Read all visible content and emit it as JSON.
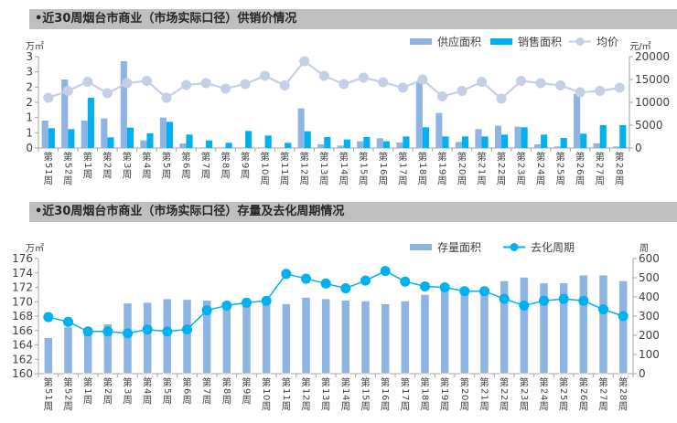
{
  "headers": {
    "chart1_title": "•近30周烟台市商业（市场实际口径）供销价情况",
    "chart2_title": "•近30周烟台市商业（市场实际口径）存量及去化周期情况"
  },
  "colors": {
    "supply": "#8eb4e3",
    "sales": "#00b0f0",
    "price": "#c5cfe6",
    "stock": "#8eb4e3",
    "cycle": "#00b0f0",
    "header_bg": "#bfbfbf"
  },
  "chart_data": [
    {
      "type": "bar",
      "title": "•近30周烟台市商业（市场实际口径）供销价情况",
      "ylabel": "万㎡",
      "y2label": "元/㎡",
      "ylim": [
        0,
        3
      ],
      "y2lim": [
        0,
        20000
      ],
      "yticks": [
        "0",
        "1",
        "1",
        "2",
        "2",
        "3",
        "3"
      ],
      "y2ticks": [
        "0",
        "5000",
        "10000",
        "15000",
        "20000"
      ],
      "legend_position": "top-right",
      "categories": [
        "第51周",
        "第52周",
        "第1周",
        "第2周",
        "第3周",
        "第4周",
        "第5周",
        "第6周",
        "第7周",
        "第8周",
        "第9周",
        "第10周",
        "第11周",
        "第12周",
        "第13周",
        "第14周",
        "第15周",
        "第16周",
        "第17周",
        "第18周",
        "第19周",
        "第20周",
        "第21周",
        "第22周",
        "第23周",
        "第24周",
        "第25周",
        "第26周",
        "第27周",
        "第28周"
      ],
      "series": [
        {
          "name": "供应面积",
          "type": "bar",
          "axis": "left",
          "values": [
            0.9,
            2.25,
            0.9,
            0.97,
            2.85,
            0.25,
            1.0,
            0.15,
            0,
            0,
            0,
            0,
            0,
            1.3,
            0.12,
            0.08,
            0.22,
            0.32,
            0.18,
            2.15,
            1.15,
            0.2,
            0.62,
            0.73,
            0.7,
            0.12,
            0.05,
            1.78,
            0.15,
            0.05
          ]
        },
        {
          "name": "销售面积",
          "type": "bar",
          "axis": "left",
          "values": [
            0.65,
            0.62,
            1.65,
            0.35,
            0.67,
            0.48,
            0.86,
            0.44,
            0.25,
            0.17,
            0.56,
            0.41,
            0.17,
            0.55,
            0.36,
            0.28,
            0.36,
            0.22,
            0.38,
            0.68,
            0.38,
            0.38,
            0.38,
            0.44,
            0.68,
            0.44,
            0.33,
            0.47,
            0.75,
            0.75
          ]
        },
        {
          "name": "均价",
          "type": "line",
          "axis": "right",
          "values": [
            11000,
            12500,
            14500,
            12000,
            14200,
            14700,
            11000,
            13800,
            14200,
            13000,
            14000,
            15800,
            13700,
            19000,
            15800,
            14000,
            15400,
            14400,
            13200,
            15000,
            11300,
            12500,
            14500,
            10800,
            14700,
            14200,
            13700,
            12200,
            12500,
            13200
          ]
        }
      ]
    },
    {
      "type": "bar",
      "title": "•近30周烟台市商业（市场实际口径）存量及去化周期情况",
      "ylabel": "万㎡",
      "y2label": "周",
      "ylim": [
        160,
        176
      ],
      "y2lim": [
        0,
        600
      ],
      "yticks": [
        "160",
        "162",
        "164",
        "166",
        "168",
        "170",
        "172",
        "174",
        "176"
      ],
      "y2ticks": [
        "0",
        "100",
        "200",
        "300",
        "400",
        "500",
        "600"
      ],
      "legend_position": "top-right",
      "categories": [
        "第51周",
        "第52周",
        "第1周",
        "第2周",
        "第3周",
        "第4周",
        "第5周",
        "第6周",
        "第7周",
        "第8周",
        "第9周",
        "第10周",
        "第11周",
        "第12周",
        "第13周",
        "第14周",
        "第15周",
        "第16周",
        "第17周",
        "第18周",
        "第19周",
        "第20周",
        "第21周",
        "第22周",
        "第23周",
        "第24周",
        "第25周",
        "第26周",
        "第27周",
        "第28周"
      ],
      "series": [
        {
          "name": "存量面积",
          "type": "bar",
          "axis": "left",
          "values": [
            165.0,
            166.5,
            165.9,
            166.9,
            169.8,
            169.9,
            170.4,
            170.3,
            170.2,
            169.9,
            170.0,
            170.3,
            169.7,
            170.6,
            170.4,
            170.2,
            170.1,
            169.7,
            170.1,
            171.0,
            171.6,
            171.4,
            171.6,
            172.9,
            173.4,
            172.6,
            172.6,
            173.7,
            173.7,
            172.9
          ]
        },
        {
          "name": "去化周期",
          "type": "line",
          "axis": "right",
          "values": [
            295,
            270,
            220,
            220,
            210,
            230,
            220,
            230,
            330,
            355,
            370,
            380,
            520,
            495,
            470,
            445,
            485,
            535,
            480,
            455,
            450,
            430,
            430,
            390,
            355,
            380,
            390,
            380,
            335,
            300
          ]
        }
      ]
    }
  ]
}
